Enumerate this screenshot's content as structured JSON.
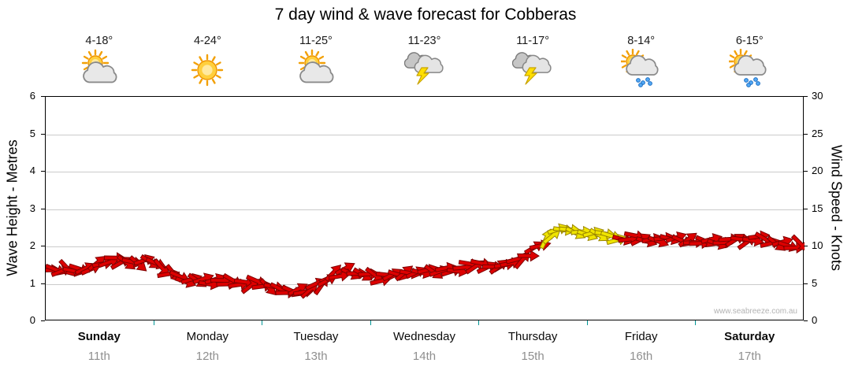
{
  "title": "7 day wind & wave forecast for Cobberas",
  "watermark": "www.seabreeze.com.au",
  "days": [
    {
      "name": "Sunday",
      "date": "11th",
      "temp": "4-18°",
      "icon": "sun-cloud",
      "bold": true
    },
    {
      "name": "Monday",
      "date": "12th",
      "temp": "4-24°",
      "icon": "sun",
      "bold": false
    },
    {
      "name": "Tuesday",
      "date": "13th",
      "temp": "11-25°",
      "icon": "sun-cloud",
      "bold": false
    },
    {
      "name": "Wednesday",
      "date": "14th",
      "temp": "11-23°",
      "icon": "storm",
      "bold": false
    },
    {
      "name": "Thursday",
      "date": "15th",
      "temp": "11-17°",
      "icon": "storm",
      "bold": false
    },
    {
      "name": "Friday",
      "date": "16th",
      "temp": "8-14°",
      "icon": "sun-rain",
      "bold": false
    },
    {
      "name": "Saturday",
      "date": "17th",
      "temp": "6-15°",
      "icon": "sun-rain",
      "bold": true
    }
  ],
  "left_axis": {
    "label": "Wave Height - Metres",
    "ticks": [
      0,
      1,
      2,
      3,
      4,
      5,
      6
    ],
    "range": [
      0,
      6
    ]
  },
  "right_axis": {
    "label": "Wind Speed - Knots",
    "ticks": [
      0,
      5,
      10,
      15,
      20,
      25,
      30
    ],
    "range": [
      0,
      30
    ]
  },
  "chart_data": {
    "type": "line",
    "title": "7 day wind & wave forecast for Cobberas",
    "x_unit": "days (0 = start of Sunday 11th, 7 = end of Saturday 17th)",
    "categories": [
      "Sunday 11th",
      "Monday 12th",
      "Tuesday 13th",
      "Wednesday 14th",
      "Thursday 15th",
      "Friday 16th",
      "Saturday 17th"
    ],
    "ylabel_left": "Wave Height - Metres",
    "ylabel_right": "Wind Speed - Knots",
    "ylim_left": [
      0,
      6
    ],
    "ylim_right": [
      0,
      30
    ],
    "grid": "horizontal gridlines at each metre / 5 knots",
    "legend": "band of wind-direction arrows; r = red arrows, y = yellow arrows",
    "band_colors": {
      "r": "#dd0000",
      "y": "#efe400"
    },
    "series": [
      {
        "name": "Wind speed (knots)",
        "points": [
          [
            0.0,
            6.8,
            "r"
          ],
          [
            0.15,
            7.0,
            "r"
          ],
          [
            0.3,
            6.5,
            "r"
          ],
          [
            0.45,
            7.5,
            "r"
          ],
          [
            0.6,
            8.0,
            "r"
          ],
          [
            0.75,
            8.2,
            "r"
          ],
          [
            0.9,
            7.8,
            "r"
          ],
          [
            1.0,
            7.5,
            "r"
          ],
          [
            1.15,
            6.5,
            "r"
          ],
          [
            1.3,
            5.5,
            "r"
          ],
          [
            1.5,
            5.2,
            "r"
          ],
          [
            1.65,
            5.5,
            "r"
          ],
          [
            1.8,
            4.8,
            "r"
          ],
          [
            1.95,
            5.2,
            "r"
          ],
          [
            2.1,
            4.4,
            "r"
          ],
          [
            2.25,
            3.9,
            "r"
          ],
          [
            2.4,
            4.3,
            "r"
          ],
          [
            2.55,
            5.2,
            "r"
          ],
          [
            2.7,
            6.5,
            "r"
          ],
          [
            2.8,
            7.0,
            "r"
          ],
          [
            2.95,
            6.0,
            "r"
          ],
          [
            3.1,
            5.6,
            "r"
          ],
          [
            3.25,
            6.3,
            "r"
          ],
          [
            3.45,
            7.0,
            "r"
          ],
          [
            3.6,
            6.6,
            "r"
          ],
          [
            3.75,
            7.0,
            "r"
          ],
          [
            3.95,
            7.3,
            "r"
          ],
          [
            4.15,
            7.6,
            "r"
          ],
          [
            4.35,
            8.3,
            "r"
          ],
          [
            4.5,
            9.3,
            "r"
          ],
          [
            4.62,
            10.5,
            "r"
          ],
          [
            4.7,
            12.5,
            "y"
          ],
          [
            4.85,
            12.2,
            "y"
          ],
          [
            5.0,
            11.8,
            "y"
          ],
          [
            5.15,
            11.4,
            "y"
          ],
          [
            5.3,
            11.2,
            "y"
          ],
          [
            5.42,
            11.0,
            "r"
          ],
          [
            5.6,
            11.0,
            "r"
          ],
          [
            5.8,
            10.7,
            "r"
          ],
          [
            6.0,
            10.9,
            "r"
          ],
          [
            6.2,
            10.5,
            "r"
          ],
          [
            6.4,
            10.8,
            "r"
          ],
          [
            6.6,
            11.2,
            "r"
          ],
          [
            6.75,
            10.6,
            "r"
          ],
          [
            6.9,
            10.2,
            "r"
          ],
          [
            7.0,
            9.9,
            "r"
          ]
        ]
      }
    ]
  }
}
